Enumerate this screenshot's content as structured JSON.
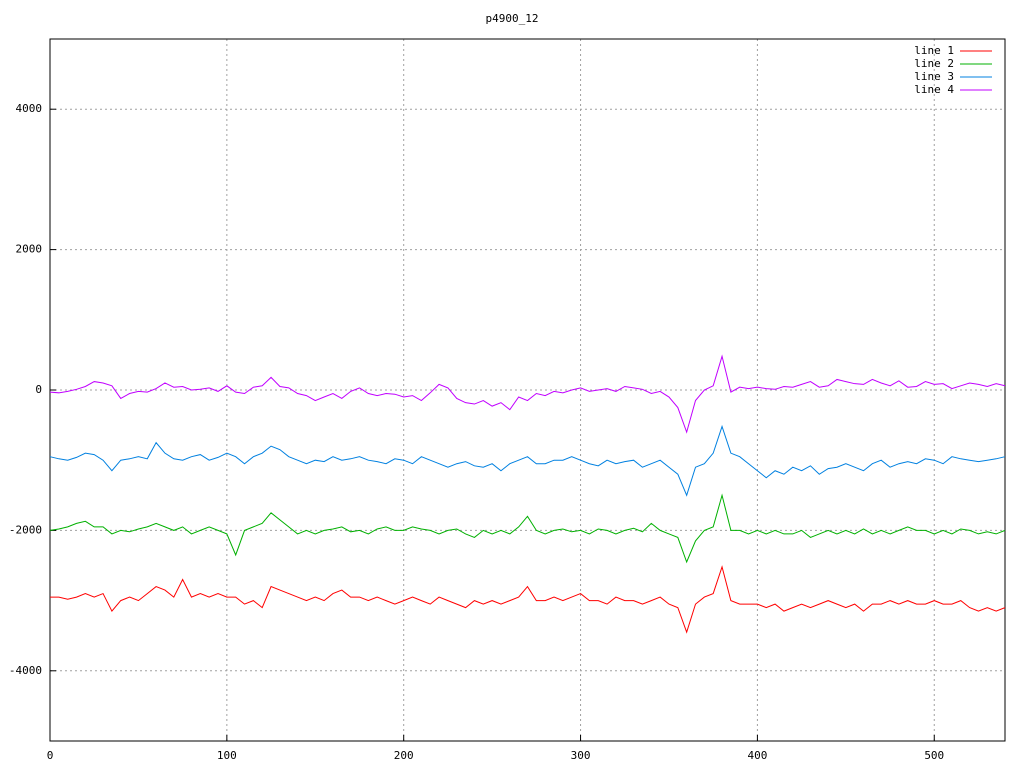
{
  "chart_data": {
    "type": "line",
    "title": "p4900_12",
    "x": [
      0,
      5,
      10,
      15,
      20,
      25,
      30,
      35,
      40,
      45,
      50,
      55,
      60,
      65,
      70,
      75,
      80,
      85,
      90,
      95,
      100,
      105,
      110,
      115,
      120,
      125,
      130,
      135,
      140,
      145,
      150,
      155,
      160,
      165,
      170,
      175,
      180,
      185,
      190,
      195,
      200,
      205,
      210,
      215,
      220,
      225,
      230,
      235,
      240,
      245,
      250,
      255,
      260,
      265,
      270,
      275,
      280,
      285,
      290,
      295,
      300,
      305,
      310,
      315,
      320,
      325,
      330,
      335,
      340,
      345,
      350,
      355,
      360,
      365,
      370,
      375,
      380,
      385,
      390,
      395,
      400,
      405,
      410,
      415,
      420,
      425,
      430,
      435,
      440,
      445,
      450,
      455,
      460,
      465,
      470,
      475,
      480,
      485,
      490,
      495,
      500,
      505,
      510,
      515,
      520,
      525,
      530,
      535,
      540
    ],
    "series": [
      {
        "name": "line 1",
        "color": "#ff0000",
        "values": [
          -2950,
          -2950,
          -2980,
          -2950,
          -2900,
          -2950,
          -2900,
          -3150,
          -3000,
          -2950,
          -3000,
          -2900,
          -2800,
          -2850,
          -2950,
          -2700,
          -2950,
          -2900,
          -2950,
          -2900,
          -2950,
          -2950,
          -3050,
          -3000,
          -3100,
          -2800,
          -2850,
          -2900,
          -2950,
          -3000,
          -2950,
          -3000,
          -2900,
          -2850,
          -2950,
          -2950,
          -3000,
          -2950,
          -3000,
          -3050,
          -3000,
          -2950,
          -3000,
          -3050,
          -2950,
          -3000,
          -3050,
          -3100,
          -3000,
          -3050,
          -3000,
          -3050,
          -3000,
          -2950,
          -2800,
          -3000,
          -3000,
          -2950,
          -3000,
          -2950,
          -2900,
          -3000,
          -3000,
          -3050,
          -2950,
          -3000,
          -3000,
          -3050,
          -3000,
          -2950,
          -3050,
          -3100,
          -3450,
          -3050,
          -2950,
          -2900,
          -2520,
          -3000,
          -3050,
          -3050,
          -3050,
          -3100,
          -3050,
          -3150,
          -3100,
          -3050,
          -3100,
          -3050,
          -3000,
          -3050,
          -3100,
          -3050,
          -3150,
          -3050,
          -3050,
          -3000,
          -3050,
          -3000,
          -3050,
          -3050,
          -3000,
          -3050,
          -3050,
          -3000,
          -3100,
          -3150,
          -3100,
          -3150,
          -3100
        ]
      },
      {
        "name": "line 2",
        "color": "#00b000",
        "values": [
          -2000,
          -1980,
          -1950,
          -1900,
          -1870,
          -1950,
          -1950,
          -2050,
          -2000,
          -2020,
          -1980,
          -1950,
          -1900,
          -1950,
          -2000,
          -1950,
          -2050,
          -2000,
          -1950,
          -2000,
          -2050,
          -2350,
          -2000,
          -1950,
          -1900,
          -1750,
          -1850,
          -1950,
          -2050,
          -2000,
          -2050,
          -2000,
          -1980,
          -1950,
          -2020,
          -2000,
          -2050,
          -1980,
          -1950,
          -2000,
          -2000,
          -1950,
          -1980,
          -2000,
          -2050,
          -2000,
          -1980,
          -2050,
          -2100,
          -2000,
          -2050,
          -2000,
          -2050,
          -1950,
          -1800,
          -2000,
          -2050,
          -2000,
          -1980,
          -2020,
          -2000,
          -2050,
          -1980,
          -2000,
          -2050,
          -2000,
          -1970,
          -2020,
          -1900,
          -2000,
          -2050,
          -2100,
          -2450,
          -2150,
          -2000,
          -1950,
          -1500,
          -2000,
          -2000,
          -2050,
          -2000,
          -2050,
          -2000,
          -2050,
          -2050,
          -2000,
          -2100,
          -2050,
          -2000,
          -2050,
          -2000,
          -2050,
          -1980,
          -2050,
          -2000,
          -2050,
          -2000,
          -1950,
          -2000,
          -2000,
          -2050,
          -2000,
          -2050,
          -1980,
          -2000,
          -2050,
          -2020,
          -2050,
          -2000
        ]
      },
      {
        "name": "line 3",
        "color": "#0080e0",
        "values": [
          -950,
          -980,
          -1000,
          -960,
          -900,
          -920,
          -1000,
          -1150,
          -1000,
          -980,
          -950,
          -980,
          -750,
          -900,
          -980,
          -1000,
          -950,
          -920,
          -1000,
          -960,
          -900,
          -950,
          -1050,
          -950,
          -900,
          -800,
          -850,
          -950,
          -1000,
          -1050,
          -1000,
          -1020,
          -950,
          -1000,
          -980,
          -950,
          -1000,
          -1020,
          -1050,
          -980,
          -1000,
          -1050,
          -950,
          -1000,
          -1050,
          -1100,
          -1050,
          -1020,
          -1080,
          -1100,
          -1050,
          -1150,
          -1050,
          -1000,
          -950,
          -1050,
          -1050,
          -1000,
          -1000,
          -950,
          -1000,
          -1050,
          -1080,
          -1000,
          -1050,
          -1020,
          -1000,
          -1100,
          -1050,
          -1000,
          -1100,
          -1200,
          -1500,
          -1100,
          -1050,
          -900,
          -520,
          -900,
          -950,
          -1050,
          -1150,
          -1250,
          -1150,
          -1200,
          -1100,
          -1150,
          -1080,
          -1200,
          -1120,
          -1100,
          -1050,
          -1100,
          -1150,
          -1050,
          -1000,
          -1100,
          -1050,
          -1020,
          -1050,
          -980,
          -1000,
          -1050,
          -950,
          -980,
          -1000,
          -1020,
          -1000,
          -980,
          -950
        ]
      },
      {
        "name": "line 4",
        "color": "#c000ff",
        "values": [
          -30,
          -40,
          -20,
          10,
          50,
          120,
          100,
          60,
          -120,
          -50,
          -20,
          -30,
          20,
          100,
          40,
          50,
          0,
          10,
          30,
          -20,
          60,
          -30,
          -50,
          40,
          60,
          180,
          50,
          30,
          -50,
          -80,
          -150,
          -100,
          -50,
          -120,
          -20,
          30,
          -50,
          -80,
          -50,
          -60,
          -100,
          -80,
          -150,
          -40,
          80,
          30,
          -120,
          -180,
          -200,
          -150,
          -230,
          -180,
          -280,
          -100,
          -150,
          -50,
          -80,
          -20,
          -40,
          0,
          30,
          -20,
          0,
          20,
          -20,
          50,
          30,
          10,
          -50,
          -20,
          -100,
          -250,
          -600,
          -150,
          0,
          60,
          480,
          -30,
          40,
          20,
          40,
          20,
          10,
          50,
          40,
          80,
          120,
          40,
          60,
          150,
          120,
          90,
          80,
          150,
          100,
          60,
          130,
          40,
          50,
          120,
          80,
          90,
          20,
          60,
          100,
          80,
          50,
          90,
          60
        ]
      }
    ],
    "xlim": [
      0,
      540
    ],
    "xticks": [
      0,
      100,
      200,
      300,
      400,
      500
    ],
    "ylim": [
      -5000,
      5000
    ],
    "yticks": [
      -4000,
      -2000,
      0,
      2000,
      4000
    ],
    "grid": true,
    "legend": "top-right"
  }
}
